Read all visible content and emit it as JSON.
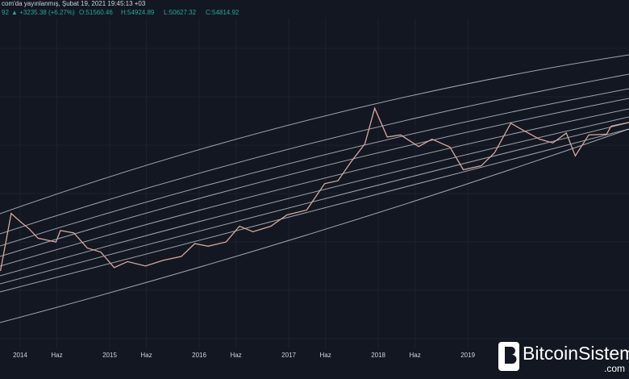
{
  "header": {
    "published": "com'da yayınlanmış, Şubat 19, 2021 19:45:13 +03",
    "last": "92",
    "change": "▲ +3235.38 (+6.27%)",
    "ohlc": [
      "O:51560.46",
      "H:54924.89",
      "L:50627.32",
      "C:54814.92"
    ]
  },
  "watermark": {
    "name": "BitcoinSistemi",
    "domain": ".com"
  },
  "chart_data": {
    "type": "line",
    "log_scale": true,
    "grid": true,
    "x": [
      2013.78,
      2013.9,
      2014.0,
      2014.1,
      2014.2,
      2014.4,
      2014.45,
      2014.6,
      2014.75,
      2014.9,
      2015.05,
      2015.2,
      2015.4,
      2015.6,
      2015.8,
      2015.95,
      2016.1,
      2016.3,
      2016.45,
      2016.6,
      2016.8,
      2016.98,
      2017.2,
      2017.4,
      2017.55,
      2017.7,
      2017.85,
      2017.96,
      2018.1,
      2018.25,
      2018.45,
      2018.6,
      2018.8,
      2018.95,
      2019.15,
      2019.3,
      2019.48,
      2019.6,
      2019.8,
      2019.95,
      2020.1,
      2020.2,
      2020.35,
      2020.55,
      2020.6,
      2020.83
    ],
    "series": [
      {
        "color": "#d9a89a",
        "values": [
          200,
          1000,
          800,
          650,
          500,
          450,
          620,
          580,
          380,
          340,
          220,
          260,
          230,
          270,
          300,
          430,
          400,
          450,
          700,
          600,
          700,
          960,
          1100,
          2300,
          2500,
          4300,
          7000,
          19000,
          8500,
          9000,
          6500,
          8000,
          6400,
          3400,
          3800,
          5500,
          12500,
          10500,
          8000,
          7200,
          9500,
          5000,
          9000,
          9200,
          11500,
          13000
        ]
      }
    ],
    "xlim": [
      2013.775,
      2020.8
    ],
    "ylim": [
      24,
      250000
    ],
    "xticks": [
      2014,
      {
        "value": 2014.41,
        "label": "Haz"
      },
      2015,
      {
        "value": 2015.41,
        "label": "Haz"
      },
      2016,
      {
        "value": 2016.41,
        "label": "Haz"
      },
      2017,
      {
        "value": 2017.41,
        "label": "Haz"
      },
      2018,
      {
        "value": 2018.41,
        "label": "Haz"
      },
      2019
    ]
  }
}
